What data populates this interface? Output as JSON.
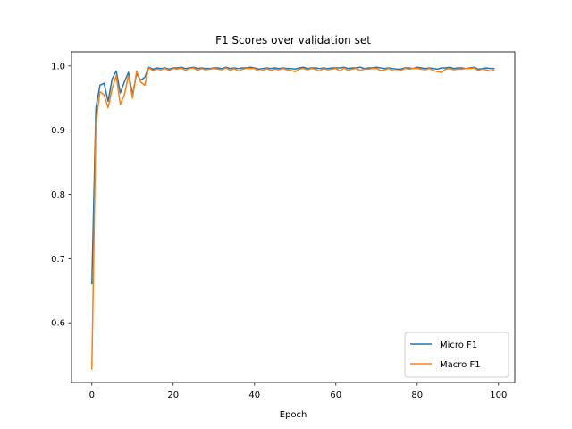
{
  "chart_data": {
    "type": "line",
    "title": "F1 Scores over validation set",
    "xlabel": "Epoch",
    "ylabel": "",
    "xlim": [
      -5,
      104
    ],
    "ylim": [
      0.507,
      1.022
    ],
    "xticks": [
      0,
      20,
      40,
      60,
      80,
      100
    ],
    "yticks": [
      0.6,
      0.7,
      0.8,
      0.9,
      1.0
    ],
    "xtick_labels": [
      "0",
      "20",
      "40",
      "60",
      "80",
      "100"
    ],
    "ytick_labels": [
      "0.6",
      "0.7",
      "0.8",
      "0.9",
      "1.0"
    ],
    "grid": false,
    "legend_position": "lower-right",
    "x": [
      0,
      1,
      2,
      3,
      4,
      5,
      6,
      7,
      8,
      9,
      10,
      11,
      12,
      13,
      14,
      15,
      16,
      17,
      18,
      19,
      20,
      21,
      22,
      23,
      24,
      25,
      26,
      27,
      28,
      29,
      30,
      31,
      32,
      33,
      34,
      35,
      36,
      37,
      38,
      39,
      40,
      41,
      42,
      43,
      44,
      45,
      46,
      47,
      48,
      49,
      50,
      51,
      52,
      53,
      54,
      55,
      56,
      57,
      58,
      59,
      60,
      61,
      62,
      63,
      64,
      65,
      66,
      67,
      68,
      69,
      70,
      71,
      72,
      73,
      74,
      75,
      76,
      77,
      78,
      79,
      80,
      81,
      82,
      83,
      84,
      85,
      86,
      87,
      88,
      89,
      90,
      91,
      92,
      93,
      94,
      95,
      96,
      97,
      98,
      99
    ],
    "series": [
      {
        "name": "Micro F1",
        "color": "#1f77b4",
        "values": [
          0.66,
          0.935,
          0.97,
          0.973,
          0.945,
          0.98,
          0.992,
          0.958,
          0.975,
          0.99,
          0.955,
          0.988,
          0.978,
          0.982,
          0.998,
          0.995,
          0.997,
          0.996,
          0.997,
          0.995,
          0.997,
          0.997,
          0.998,
          0.996,
          0.997,
          0.998,
          0.996,
          0.997,
          0.996,
          0.996,
          0.997,
          0.997,
          0.996,
          0.998,
          0.996,
          0.997,
          0.996,
          0.997,
          0.997,
          0.998,
          0.997,
          0.995,
          0.996,
          0.997,
          0.996,
          0.997,
          0.996,
          0.997,
          0.996,
          0.996,
          0.995,
          0.997,
          0.998,
          0.996,
          0.997,
          0.997,
          0.996,
          0.997,
          0.996,
          0.997,
          0.997,
          0.997,
          0.998,
          0.996,
          0.997,
          0.997,
          0.998,
          0.996,
          0.997,
          0.997,
          0.998,
          0.997,
          0.996,
          0.997,
          0.996,
          0.995,
          0.995,
          0.997,
          0.997,
          0.996,
          0.998,
          0.997,
          0.996,
          0.997,
          0.996,
          0.995,
          0.997,
          0.997,
          0.998,
          0.996,
          0.997,
          0.997,
          0.996,
          0.997,
          0.998,
          0.995,
          0.996,
          0.997,
          0.996,
          0.996
        ]
      },
      {
        "name": "Macro F1",
        "color": "#ff7f0e",
        "values": [
          0.527,
          0.91,
          0.96,
          0.955,
          0.935,
          0.965,
          0.985,
          0.94,
          0.955,
          0.985,
          0.95,
          0.992,
          0.975,
          0.97,
          0.997,
          0.993,
          0.995,
          0.994,
          0.996,
          0.993,
          0.996,
          0.995,
          0.997,
          0.993,
          0.996,
          0.997,
          0.993,
          0.996,
          0.994,
          0.995,
          0.996,
          0.995,
          0.994,
          0.997,
          0.993,
          0.996,
          0.992,
          0.995,
          0.996,
          0.996,
          0.996,
          0.992,
          0.993,
          0.996,
          0.993,
          0.995,
          0.994,
          0.996,
          0.994,
          0.993,
          0.991,
          0.995,
          0.996,
          0.994,
          0.996,
          0.995,
          0.992,
          0.996,
          0.994,
          0.995,
          0.996,
          0.992,
          0.997,
          0.993,
          0.995,
          0.996,
          0.993,
          0.995,
          0.995,
          0.996,
          0.996,
          0.993,
          0.994,
          0.996,
          0.993,
          0.992,
          0.993,
          0.996,
          0.995,
          0.996,
          0.996,
          0.995,
          0.994,
          0.996,
          0.993,
          0.991,
          0.99,
          0.995,
          0.996,
          0.994,
          0.995,
          0.995,
          0.996,
          0.996,
          0.997,
          0.993,
          0.995,
          0.994,
          0.992,
          0.994
        ]
      }
    ]
  }
}
